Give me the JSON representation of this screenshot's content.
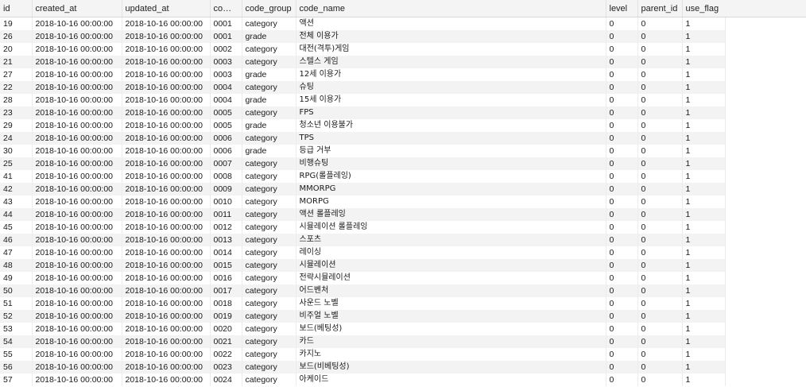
{
  "columns": [
    "id",
    "created_at",
    "updated_at",
    "co…",
    "code_group",
    "code_name",
    "level",
    "parent_id",
    "use_flag"
  ],
  "rows": [
    [
      "19",
      "2018-10-16 00:00:00",
      "2018-10-16 00:00:00",
      "0001",
      "category",
      "액션",
      "0",
      "0",
      "1"
    ],
    [
      "26",
      "2018-10-16 00:00:00",
      "2018-10-16 00:00:00",
      "0001",
      "grade",
      "전체 이용가",
      "0",
      "0",
      "1"
    ],
    [
      "20",
      "2018-10-16 00:00:00",
      "2018-10-16 00:00:00",
      "0002",
      "category",
      "대전(격투)게임",
      "0",
      "0",
      "1"
    ],
    [
      "21",
      "2018-10-16 00:00:00",
      "2018-10-16 00:00:00",
      "0003",
      "category",
      "스텔스 게임",
      "0",
      "0",
      "1"
    ],
    [
      "27",
      "2018-10-16 00:00:00",
      "2018-10-16 00:00:00",
      "0003",
      "grade",
      "12세 이용가",
      "0",
      "0",
      "1"
    ],
    [
      "22",
      "2018-10-16 00:00:00",
      "2018-10-16 00:00:00",
      "0004",
      "category",
      "슈팅",
      "0",
      "0",
      "1"
    ],
    [
      "28",
      "2018-10-16 00:00:00",
      "2018-10-16 00:00:00",
      "0004",
      "grade",
      "15세 이용가",
      "0",
      "0",
      "1"
    ],
    [
      "23",
      "2018-10-16 00:00:00",
      "2018-10-16 00:00:00",
      "0005",
      "category",
      "FPS",
      "0",
      "0",
      "1"
    ],
    [
      "29",
      "2018-10-16 00:00:00",
      "2018-10-16 00:00:00",
      "0005",
      "grade",
      "청소년 이용불가",
      "0",
      "0",
      "1"
    ],
    [
      "24",
      "2018-10-16 00:00:00",
      "2018-10-16 00:00:00",
      "0006",
      "category",
      "TPS",
      "0",
      "0",
      "1"
    ],
    [
      "30",
      "2018-10-16 00:00:00",
      "2018-10-16 00:00:00",
      "0006",
      "grade",
      "등급 거부",
      "0",
      "0",
      "1"
    ],
    [
      "25",
      "2018-10-16 00:00:00",
      "2018-10-16 00:00:00",
      "0007",
      "category",
      "비행슈팅",
      "0",
      "0",
      "1"
    ],
    [
      "41",
      "2018-10-16 00:00:00",
      "2018-10-16 00:00:00",
      "0008",
      "category",
      "RPG(롤플레잉)",
      "0",
      "0",
      "1"
    ],
    [
      "42",
      "2018-10-16 00:00:00",
      "2018-10-16 00:00:00",
      "0009",
      "category",
      "MMORPG",
      "0",
      "0",
      "1"
    ],
    [
      "43",
      "2018-10-16 00:00:00",
      "2018-10-16 00:00:00",
      "0010",
      "category",
      "MORPG",
      "0",
      "0",
      "1"
    ],
    [
      "44",
      "2018-10-16 00:00:00",
      "2018-10-16 00:00:00",
      "0011",
      "category",
      "액션 롤플레잉",
      "0",
      "0",
      "1"
    ],
    [
      "45",
      "2018-10-16 00:00:00",
      "2018-10-16 00:00:00",
      "0012",
      "category",
      "시뮬레이션 롤플레잉",
      "0",
      "0",
      "1"
    ],
    [
      "46",
      "2018-10-16 00:00:00",
      "2018-10-16 00:00:00",
      "0013",
      "category",
      "스포츠",
      "0",
      "0",
      "1"
    ],
    [
      "47",
      "2018-10-16 00:00:00",
      "2018-10-16 00:00:00",
      "0014",
      "category",
      "레이싱",
      "0",
      "0",
      "1"
    ],
    [
      "48",
      "2018-10-16 00:00:00",
      "2018-10-16 00:00:00",
      "0015",
      "category",
      "시뮬레이션",
      "0",
      "0",
      "1"
    ],
    [
      "49",
      "2018-10-16 00:00:00",
      "2018-10-16 00:00:00",
      "0016",
      "category",
      "전략시뮬레이션",
      "0",
      "0",
      "1"
    ],
    [
      "50",
      "2018-10-16 00:00:00",
      "2018-10-16 00:00:00",
      "0017",
      "category",
      "어드벤처",
      "0",
      "0",
      "1"
    ],
    [
      "51",
      "2018-10-16 00:00:00",
      "2018-10-16 00:00:00",
      "0018",
      "category",
      "사운드 노벨",
      "0",
      "0",
      "1"
    ],
    [
      "52",
      "2018-10-16 00:00:00",
      "2018-10-16 00:00:00",
      "0019",
      "category",
      "비주얼 노벨",
      "0",
      "0",
      "1"
    ],
    [
      "53",
      "2018-10-16 00:00:00",
      "2018-10-16 00:00:00",
      "0020",
      "category",
      "보드(베팅성)",
      "0",
      "0",
      "1"
    ],
    [
      "54",
      "2018-10-16 00:00:00",
      "2018-10-16 00:00:00",
      "0021",
      "category",
      "카드",
      "0",
      "0",
      "1"
    ],
    [
      "55",
      "2018-10-16 00:00:00",
      "2018-10-16 00:00:00",
      "0022",
      "category",
      "카지노",
      "0",
      "0",
      "1"
    ],
    [
      "56",
      "2018-10-16 00:00:00",
      "2018-10-16 00:00:00",
      "0023",
      "category",
      "보드(비베팅성)",
      "0",
      "0",
      "1"
    ],
    [
      "57",
      "2018-10-16 00:00:00",
      "2018-10-16 00:00:00",
      "0024",
      "category",
      "아케이드",
      "0",
      "0",
      "1"
    ]
  ]
}
